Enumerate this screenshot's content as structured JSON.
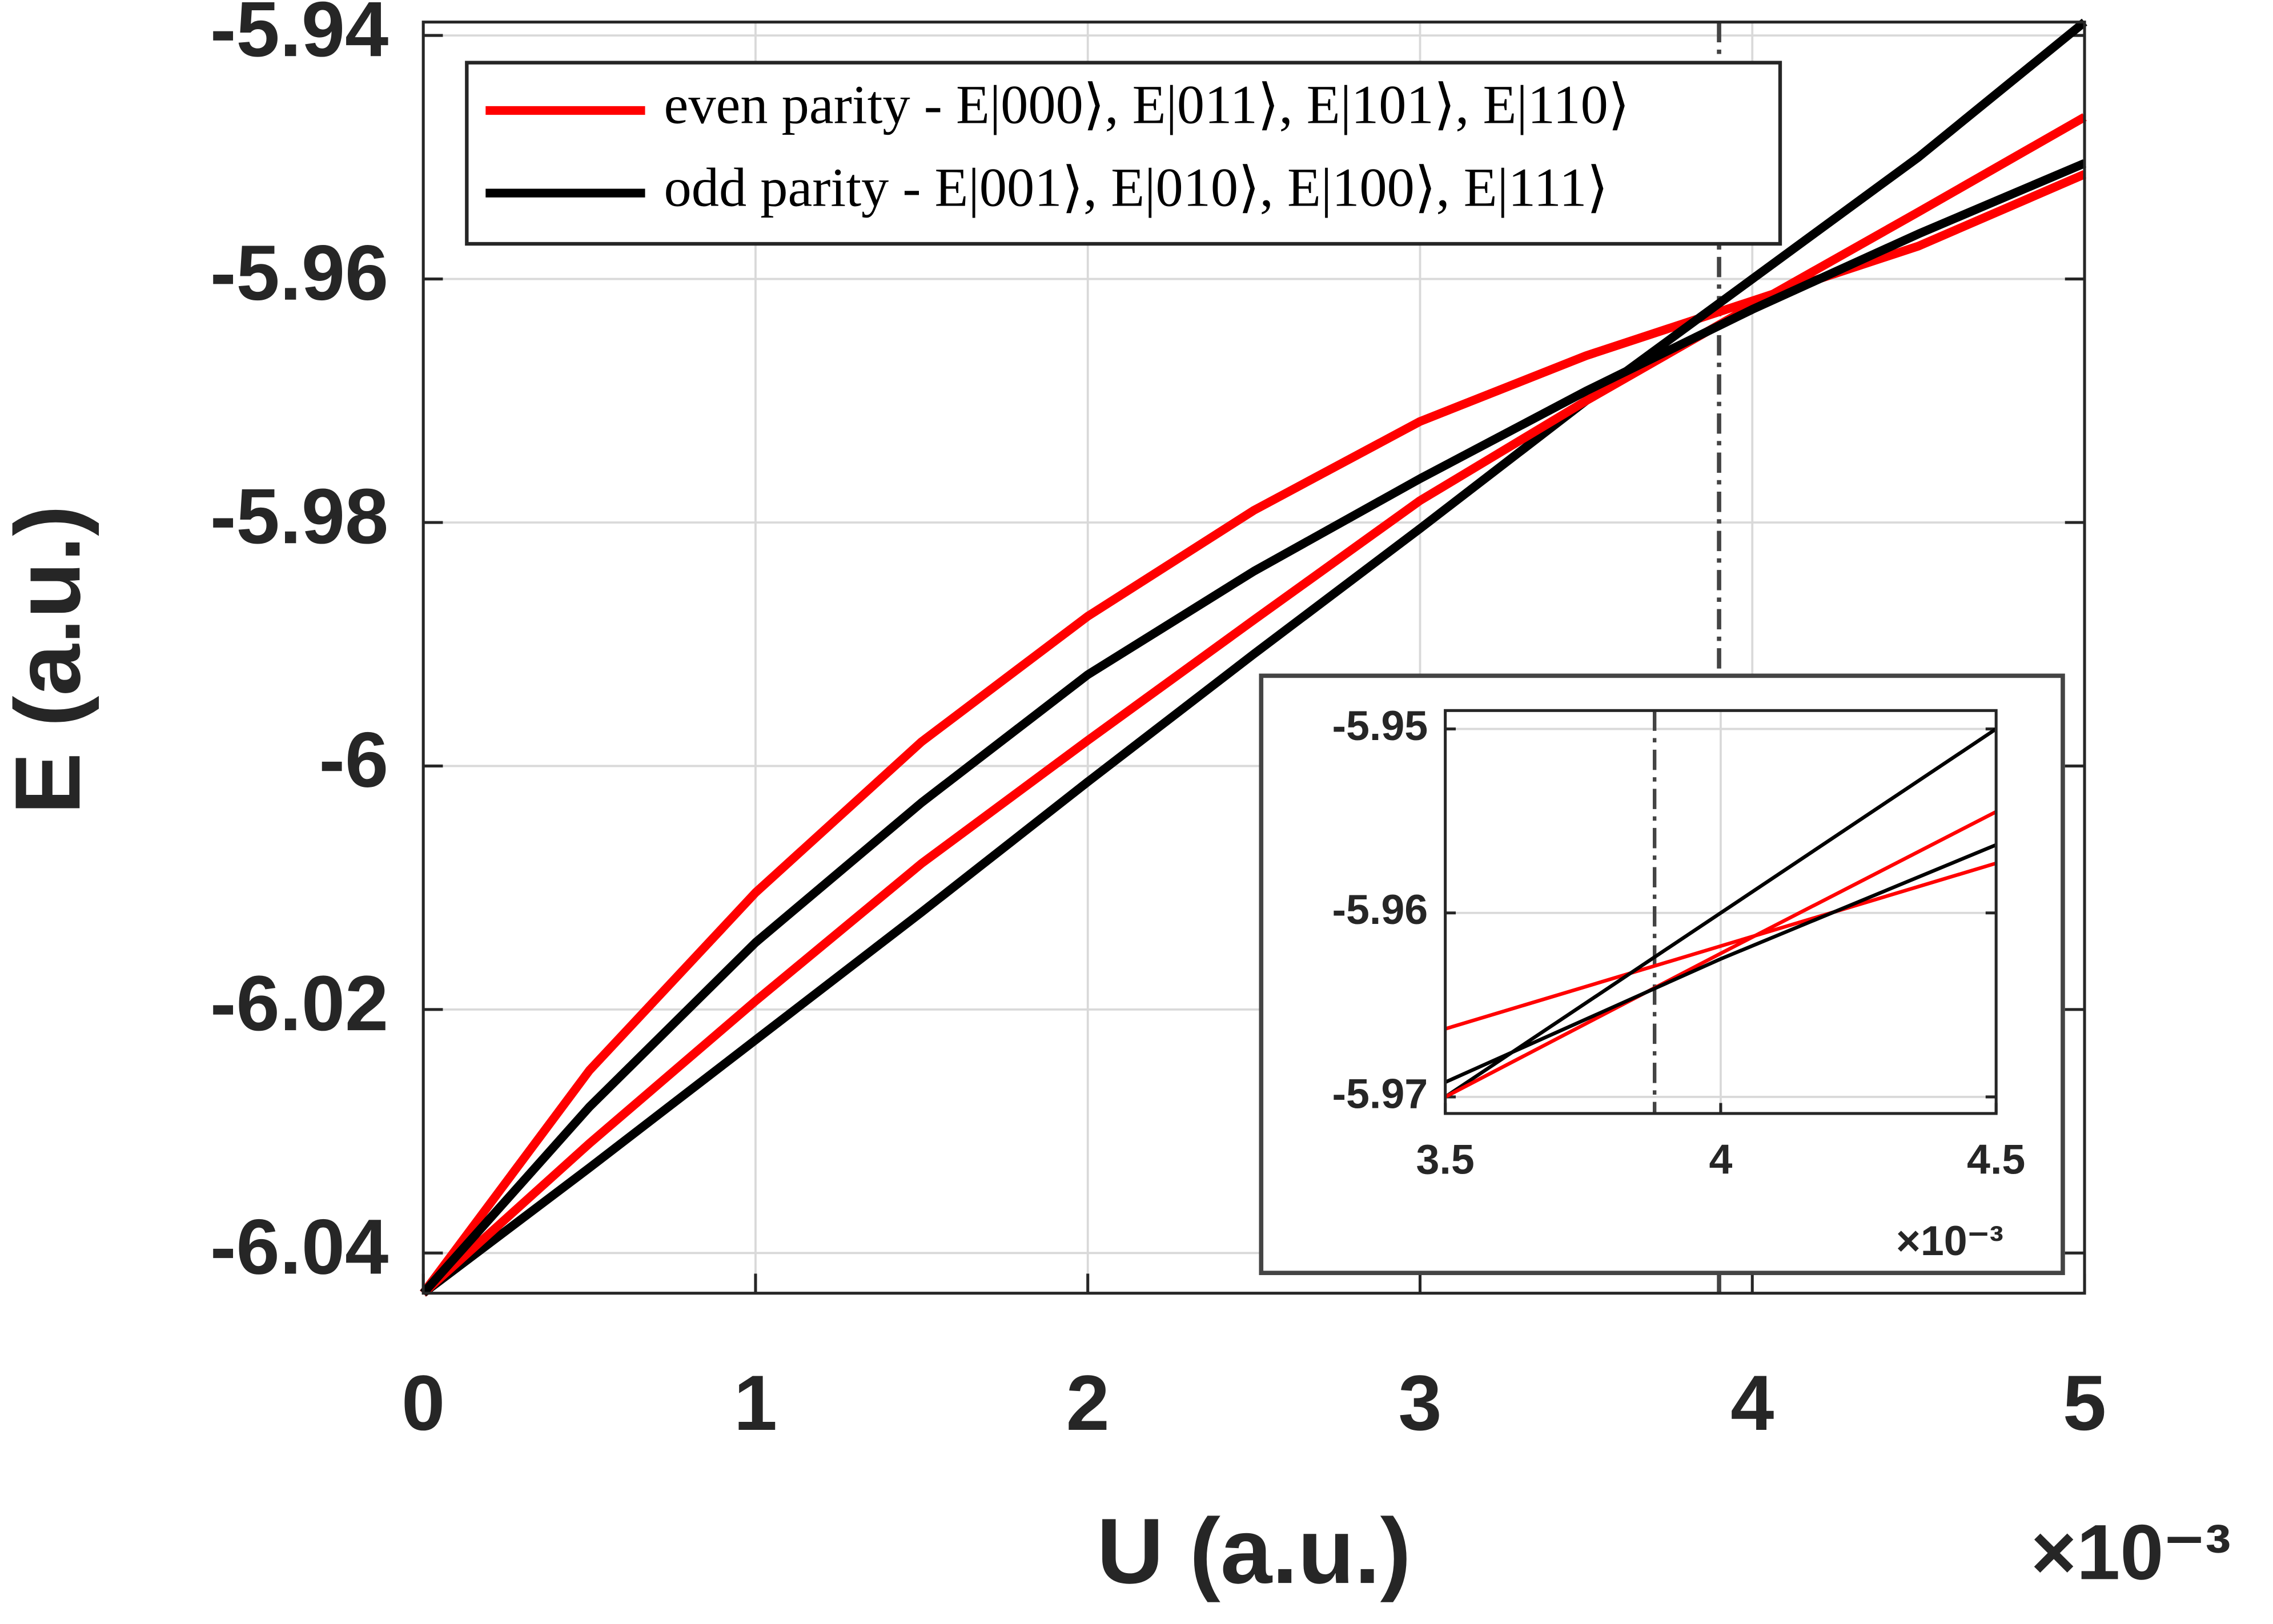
{
  "chart_data": [
    {
      "type": "line",
      "x": [
        0,
        0.5,
        1,
        1.5,
        2,
        2.5,
        3,
        3.5,
        4,
        4.5,
        5
      ],
      "series": [
        {
          "name": "even parity - E|000⟩, E|011⟩, E|101⟩, E|110⟩",
          "color": "#ff0000",
          "values": [
            -6.0433,
            -6.025,
            -6.0104,
            -5.998,
            -5.9877,
            -5.979,
            -5.9717,
            -5.9663,
            -5.9618,
            -5.9573,
            -5.9514
          ]
        },
        {
          "name": "odd parity - E|001⟩, E|010⟩, E|100⟩, E|111⟩",
          "color": "#000000",
          "values": [
            -6.0433,
            -6.033,
            -6.0225,
            -6.012,
            -6.0013,
            -5.9908,
            -5.9805,
            -5.97,
            -5.96,
            -5.95,
            -5.9389
          ]
        },
        {
          "color": "#ff0000",
          "values": [
            -6.0433,
            -6.031,
            -6.0193,
            -6.008,
            -5.9979,
            -5.988,
            -5.9782,
            -5.97,
            -5.9622,
            -5.9545,
            -5.9467
          ]
        },
        {
          "color": "#000000",
          "values": [
            -6.0433,
            -6.028,
            -6.0145,
            -6.003,
            -5.9925,
            -5.984,
            -5.9764,
            -5.9692,
            -5.9625,
            -5.9563,
            -5.9505
          ]
        }
      ],
      "xlim": [
        0,
        5
      ],
      "xticks": [
        0,
        1,
        2,
        3,
        4,
        5
      ],
      "ylim": [
        -6.0433,
        -5.9389
      ],
      "yticks": [
        -6.04,
        -6.02,
        -6,
        -5.98,
        -5.96,
        -5.94
      ],
      "x_label": "U (a.u.)",
      "y_label": "E (a.u.)",
      "x_multiplier": "×10⁻³",
      "vline": 3.9,
      "grid": true
    },
    {
      "type": "line",
      "x": [
        3.5,
        4,
        4.5
      ],
      "series": [
        {
          "color": "#ff0000",
          "values": [
            -5.9663,
            -5.9618,
            -5.9573
          ]
        },
        {
          "color": "#000000",
          "values": [
            -5.97,
            -5.96,
            -5.95
          ]
        },
        {
          "color": "#ff0000",
          "values": [
            -5.97,
            -5.9622,
            -5.9545
          ]
        },
        {
          "color": "#000000",
          "values": [
            -5.9692,
            -5.9625,
            -5.9563
          ]
        }
      ],
      "xlim": [
        3.5,
        4.5
      ],
      "xticks": [
        3.5,
        4,
        4.5
      ],
      "ylim": [
        -5.9709,
        -5.949
      ],
      "yticks": [
        -5.97,
        -5.96,
        -5.95
      ],
      "x_multiplier": "×10⁻³",
      "vline": 3.88,
      "grid": true
    }
  ]
}
